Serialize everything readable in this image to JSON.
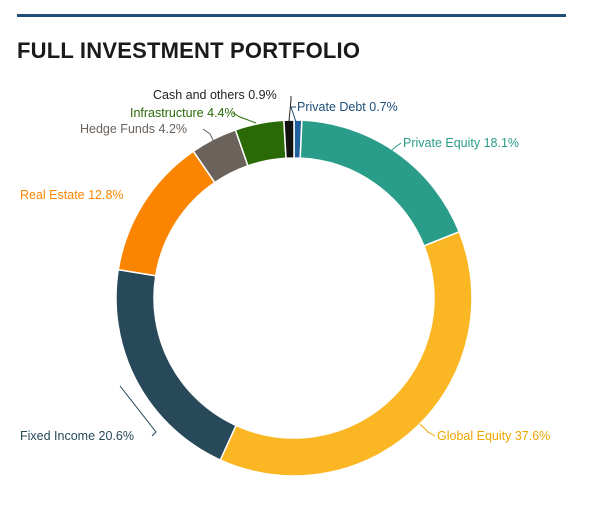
{
  "chart_data": {
    "type": "pie",
    "title": "FULL INVESTMENT PORTFOLIO",
    "donut": true,
    "categories": [
      "Private Debt",
      "Private Equity",
      "Global Equity",
      "Fixed Income",
      "Real Estate",
      "Hedge Funds",
      "Infrastructure",
      "Cash and others"
    ],
    "values": [
      0.7,
      18.1,
      37.6,
      20.6,
      12.8,
      4.2,
      4.4,
      0.9
    ],
    "colors": [
      "#1f5f9e",
      "#2a9d8a",
      "#fbb723",
      "#27495a",
      "#fb8500",
      "#6b625b",
      "#2a6a06",
      "#111111"
    ],
    "data_labels": [
      "Private Debt 0.7%",
      "Private Equity 18.1%",
      "Global Equity 37.6%",
      "Fixed Income 20.6%",
      "Real Estate 12.8%",
      "Hedge Funds 4.2%",
      "Infrastructure 4.4%",
      "Cash and others 0.9%"
    ],
    "label_colors": [
      "#1f4e79",
      "#2a9d8a",
      "#f0a500",
      "#27495a",
      "#fb8500",
      "#6b625b",
      "#2a6a06",
      "#222222"
    ]
  }
}
